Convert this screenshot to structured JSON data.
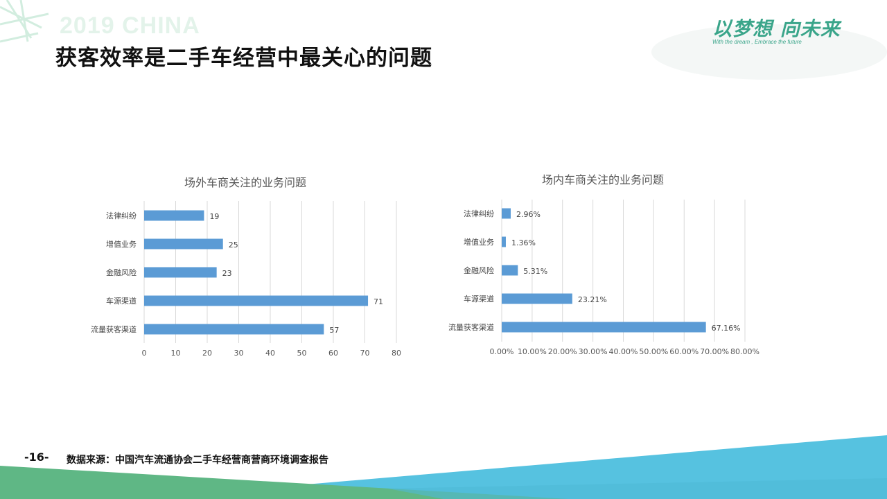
{
  "slide": {
    "decor_text": "2019 CHINA",
    "title": "获客效率是二手车经营中最关心的问题",
    "logo_main": "以梦想 向未来",
    "logo_sub": "With the dream , Embrace the future",
    "page_number": "-16-",
    "source_note": "数据来源：中国汽车流通协会二手车经营商营商环境调查报告"
  },
  "colors": {
    "bar": "#5b9bd5",
    "grid": "#d9d9d9",
    "bottom_blue": "#56c2e0",
    "bottom_green": "#5fb785"
  },
  "chart_data": [
    {
      "type": "bar",
      "orientation": "horizontal",
      "title": "场外车商关注的业务问题",
      "categories": [
        "法律纠纷",
        "增值业务",
        "金融风险",
        "车源渠道",
        "流量获客渠道"
      ],
      "values": [
        19,
        25,
        23,
        71,
        57
      ],
      "value_labels": [
        "19",
        "25",
        "23",
        "71",
        "57"
      ],
      "xlim": [
        0,
        80
      ],
      "ticks": [
        "0",
        "10",
        "20",
        "30",
        "40",
        "50",
        "60",
        "70",
        "80"
      ],
      "grid": true,
      "legend": "none"
    },
    {
      "type": "bar",
      "orientation": "horizontal",
      "title": "场内车商关注的业务问题",
      "categories": [
        "法律纠纷",
        "增值业务",
        "金融风险",
        "车源渠道",
        "流量获客渠道"
      ],
      "values": [
        2.96,
        1.36,
        5.31,
        23.21,
        67.16
      ],
      "value_labels": [
        "2.96%",
        "1.36%",
        "5.31%",
        "23.21%",
        "67.16%"
      ],
      "xlim": [
        0,
        80
      ],
      "ticks": [
        "0.00%",
        "10.00%",
        "20.00%",
        "30.00%",
        "40.00%",
        "50.00%",
        "60.00%",
        "70.00%",
        "80.00%"
      ],
      "grid": true,
      "legend": "none"
    }
  ]
}
